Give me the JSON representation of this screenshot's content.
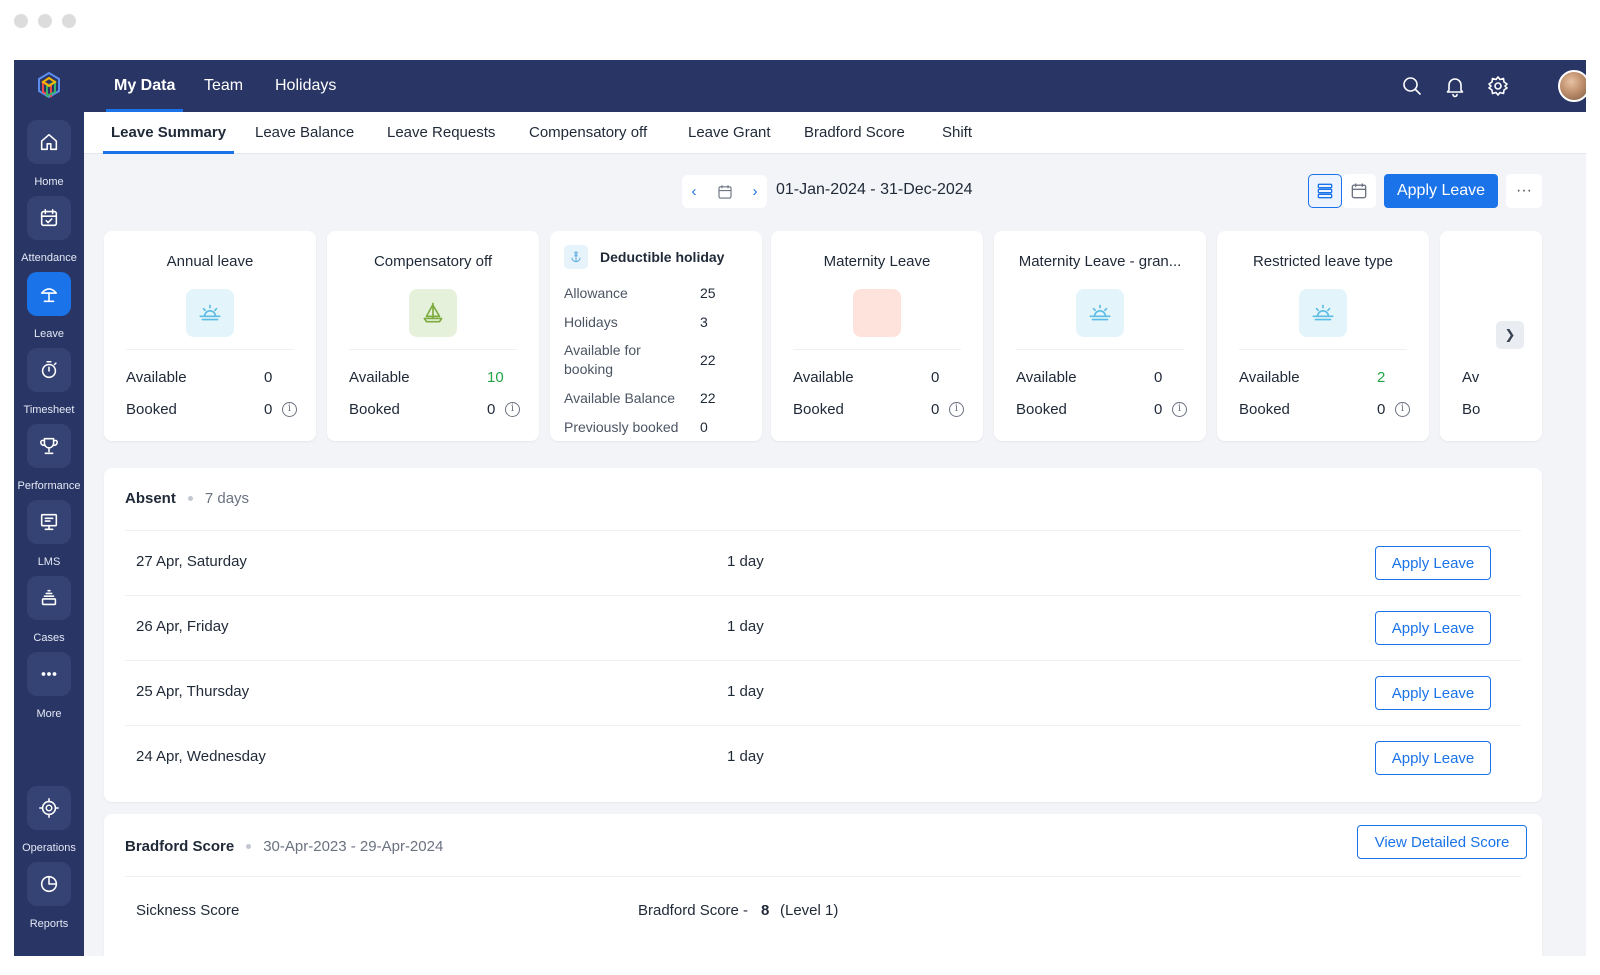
{
  "window": {
    "controls": [
      "close",
      "minimize",
      "maximize"
    ]
  },
  "colors": {
    "sidebar": "#283565",
    "accent": "#1a73e8",
    "positive": "#22a447"
  },
  "sidebar": {
    "items": [
      {
        "label": "Home",
        "icon": "home-icon"
      },
      {
        "label": "Attendance",
        "icon": "calendar-check-icon"
      },
      {
        "label": "Leave",
        "icon": "beach-umbrella-icon",
        "active": true
      },
      {
        "label": "Timesheet",
        "icon": "timer-icon"
      },
      {
        "label": "Performance",
        "icon": "trophy-icon"
      },
      {
        "label": "LMS",
        "icon": "learning-board-icon"
      },
      {
        "label": "Cases",
        "icon": "cases-stack-icon"
      },
      {
        "label": "More",
        "icon": "more-dots-icon"
      },
      {
        "label": "Operations",
        "icon": "operations-gear-icon"
      },
      {
        "label": "Reports",
        "icon": "pie-chart-icon"
      }
    ]
  },
  "topnav": {
    "tabs": [
      {
        "label": "My Data",
        "active": true
      },
      {
        "label": "Team"
      },
      {
        "label": "Holidays"
      }
    ]
  },
  "subnav": {
    "tabs": [
      {
        "label": "Leave Summary",
        "active": true
      },
      {
        "label": "Leave Balance"
      },
      {
        "label": "Leave Requests"
      },
      {
        "label": "Compensatory off"
      },
      {
        "label": "Leave Grant"
      },
      {
        "label": "Bradford Score"
      },
      {
        "label": "Shift"
      }
    ]
  },
  "toolbar": {
    "prev": "‹",
    "next": "›",
    "date_range": "01-Jan-2024 - 31-Dec-2024",
    "apply_leave": "Apply Leave",
    "more": "···"
  },
  "cards": [
    {
      "title": "Annual leave",
      "icon": "sun-horizon-icon",
      "available_label": "Available",
      "available": "0",
      "booked_label": "Booked",
      "booked": "0"
    },
    {
      "title": "Compensatory off",
      "icon": "sailboat-icon",
      "available_label": "Available",
      "available": "10",
      "booked_label": "Booked",
      "booked": "0"
    },
    {
      "title": "Deductible holiday",
      "icon": "anchor-icon",
      "rows": [
        {
          "label": "Allowance",
          "value": "25"
        },
        {
          "label": "Holidays",
          "value": "3"
        },
        {
          "label": "Available for",
          "label2": "booking",
          "value": "22"
        },
        {
          "label": "Available Balance",
          "value": "22"
        },
        {
          "label": "Previously booked",
          "value": "0"
        }
      ]
    },
    {
      "title": "Maternity Leave",
      "icon": "blank-tile",
      "available_label": "Available",
      "available": "0",
      "booked_label": "Booked",
      "booked": "0"
    },
    {
      "title": "Maternity Leave - gran...",
      "icon": "sun-horizon-icon",
      "available_label": "Available",
      "available": "0",
      "booked_label": "Booked",
      "booked": "0"
    },
    {
      "title": "Restricted leave type",
      "icon": "sun-horizon-icon",
      "available_label": "Available",
      "available": "2",
      "booked_label": "Booked",
      "booked": "0"
    },
    {
      "available_label": "Av",
      "booked_label": "Bo"
    }
  ],
  "absent": {
    "title": "Absent",
    "count": "7 days",
    "rows": [
      {
        "date": "27 Apr, Saturday",
        "duration": "1 day",
        "action": "Apply Leave"
      },
      {
        "date": "26 Apr, Friday",
        "duration": "1 day",
        "action": "Apply Leave"
      },
      {
        "date": "25 Apr, Thursday",
        "duration": "1 day",
        "action": "Apply Leave"
      },
      {
        "date": "24 Apr, Wednesday",
        "duration": "1 day",
        "action": "Apply Leave"
      }
    ]
  },
  "bradford": {
    "title": "Bradford Score",
    "period": "30-Apr-2023 - 29-Apr-2024",
    "view_button": "View Detailed Score",
    "sickness_label": "Sickness Score",
    "score_label": "Bradford Score -",
    "score_value": "8",
    "level": "(Level 1)"
  }
}
